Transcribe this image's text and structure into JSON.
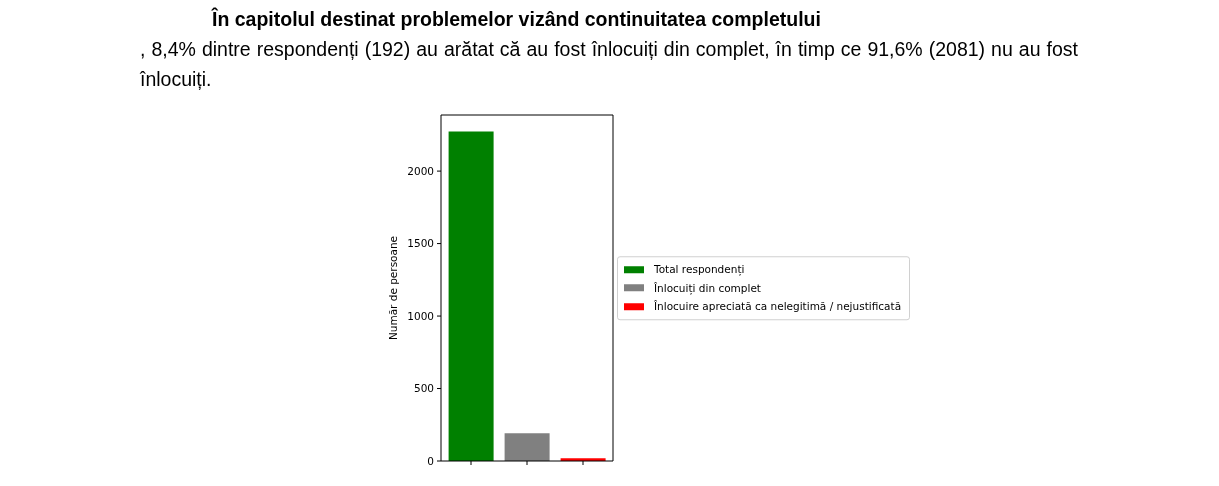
{
  "chart_data": {
    "type": "bar",
    "title": "În capitolul destinat problemelor vizând continuitatea completului",
    "subtitle": ", 8,4% dintre respondenți (192) au arătat că au fost înlocuiți din complet, în timp ce 91,6% (2081) nu au fost înlocuiți.",
    "ylabel": "Număr de persoane",
    "categories": [
      null,
      null,
      null
    ],
    "series": [
      {
        "name": "Total respondenți",
        "color": "#008000",
        "values": [
          2273,
          null,
          null
        ]
      },
      {
        "name": "Înlocuiți din complet",
        "color": "#808080",
        "values": [
          null,
          192,
          null
        ]
      },
      {
        "name": "Înlocuire apreciată ca nelegitimă / nejustificată",
        "color": "#ff0000",
        "values": [
          null,
          null,
          19
        ]
      }
    ],
    "ylim": [
      0,
      2387
    ],
    "yticks": [
      0,
      500,
      1000,
      1500,
      2000
    ],
    "legend": "right",
    "tick_labels": "y"
  }
}
